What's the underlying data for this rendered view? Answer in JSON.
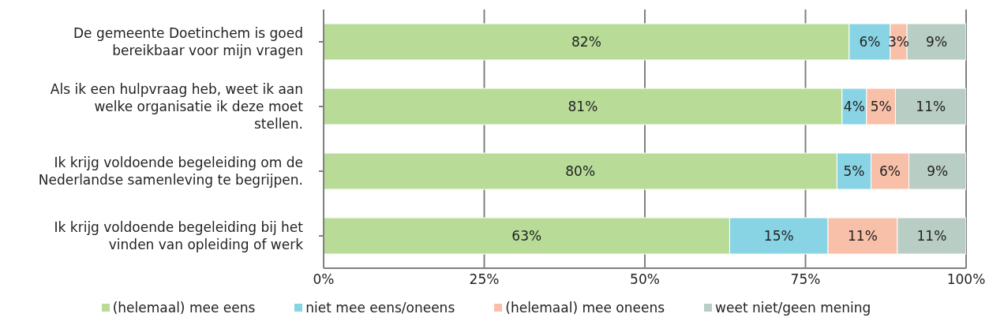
{
  "chart_data": {
    "type": "bar",
    "orientation": "horizontal",
    "stacked": true,
    "categories": [
      "De gemeente Doetinchem is goed bereikbaar voor mijn vragen",
      "Als ik een hulpvraag heb, weet ik aan welke organisatie ik deze moet stellen.",
      "Ik krijg voldoende begeleiding om de Nederlandse samenleving te begrijpen.",
      "Ik krijg voldoende begeleiding bij het vinden van opleiding of werk"
    ],
    "series": [
      {
        "name": "(helemaal) mee eens",
        "color": "#b8dc98",
        "values": [
          81.8,
          80.7,
          79.9,
          63.2
        ],
        "value_labels": [
          "82%",
          "81%",
          "80%",
          "63%"
        ]
      },
      {
        "name": "niet mee eens/oneens",
        "color": "#88d4e4",
        "values": [
          6.4,
          3.8,
          5.3,
          15.3
        ],
        "value_labels": [
          "6%",
          "4%",
          "5%",
          "15%"
        ]
      },
      {
        "name": "(helemaal) mee oneens",
        "color": "#f8c0a8",
        "values": [
          2.6,
          4.5,
          5.9,
          10.8
        ],
        "value_labels": [
          "3%",
          "5%",
          "6%",
          "11%"
        ]
      },
      {
        "name": "weet niet/geen mening",
        "color": "#b8cdc4",
        "values": [
          9.2,
          11.0,
          8.9,
          10.7
        ],
        "value_labels": [
          "9%",
          "11%",
          "9%",
          "11%"
        ]
      }
    ],
    "xlim": [
      0,
      100
    ],
    "xticks": [
      {
        "value": 0,
        "label": "0%"
      },
      {
        "value": 25,
        "label": "25%"
      },
      {
        "value": 50,
        "label": "50%"
      },
      {
        "value": 75,
        "label": "75%"
      },
      {
        "value": 100,
        "label": "100%"
      }
    ],
    "grid": "x",
    "legend": "bottom",
    "marker": "square"
  }
}
